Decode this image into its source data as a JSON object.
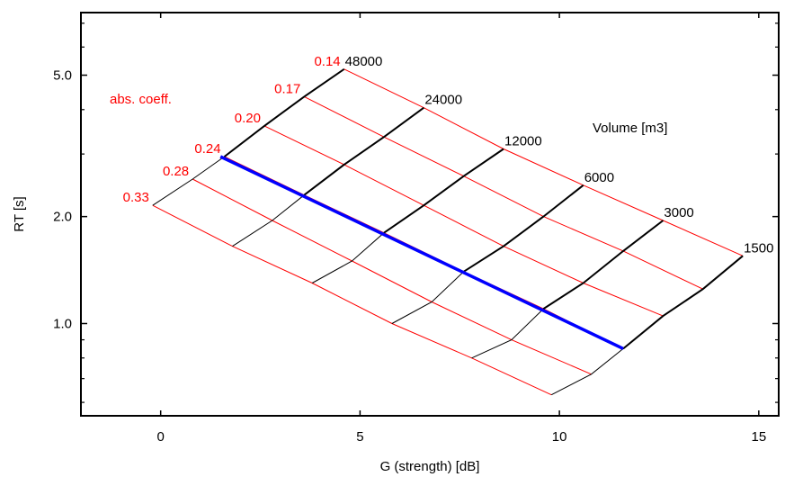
{
  "chart_data": {
    "type": "line",
    "title": "",
    "xlabel": "G (strength) [dB]",
    "ylabel": "RT [s]",
    "xlim": [
      -2,
      15.5
    ],
    "ylim": [
      0.55,
      7.5
    ],
    "y_scale": "log",
    "grid": false,
    "x_ticks": [
      0,
      5,
      10,
      15
    ],
    "x_tick_labels": [
      "0",
      "5",
      "10",
      "15"
    ],
    "y_ticks": [
      1.0,
      2.0,
      5.0
    ],
    "y_tick_labels": [
      "1.0",
      "2.0",
      "5.0"
    ],
    "abs_coeff_title": "abs. coeff.",
    "volume_title": "Volume [m3]",
    "colors": {
      "abs_coeff": "#ff0000",
      "volume": "#000000",
      "highlight": "#0000ff"
    },
    "volumes": [
      "48000",
      "24000",
      "12000",
      "6000",
      "3000",
      "1500"
    ],
    "abs_coeffs": [
      "0.14",
      "0.17",
      "0.20",
      "0.24",
      "0.28",
      "0.33"
    ],
    "grid_nodes": [
      [
        {
          "x": 4.6,
          "y": 5.2
        },
        {
          "x": 6.6,
          "y": 4.05
        },
        {
          "x": 8.6,
          "y": 3.1
        },
        {
          "x": 10.6,
          "y": 2.45
        },
        {
          "x": 12.6,
          "y": 1.95
        },
        {
          "x": 14.6,
          "y": 1.55
        }
      ],
      [
        {
          "x": 3.6,
          "y": 4.35
        },
        {
          "x": 5.6,
          "y": 3.35
        },
        {
          "x": 7.6,
          "y": 2.6
        },
        {
          "x": 9.6,
          "y": 2.0
        },
        {
          "x": 11.6,
          "y": 1.6
        },
        {
          "x": 13.6,
          "y": 1.25
        }
      ],
      [
        {
          "x": 2.6,
          "y": 3.6
        },
        {
          "x": 4.6,
          "y": 2.8
        },
        {
          "x": 6.6,
          "y": 2.15
        },
        {
          "x": 8.6,
          "y": 1.65
        },
        {
          "x": 10.6,
          "y": 1.3
        },
        {
          "x": 12.6,
          "y": 1.05
        }
      ],
      [
        {
          "x": 1.6,
          "y": 2.95
        },
        {
          "x": 3.6,
          "y": 2.3
        },
        {
          "x": 5.6,
          "y": 1.8
        },
        {
          "x": 7.6,
          "y": 1.4
        },
        {
          "x": 9.6,
          "y": 1.1
        },
        {
          "x": 11.6,
          "y": 0.85
        }
      ],
      [
        {
          "x": 0.8,
          "y": 2.55
        },
        {
          "x": 2.8,
          "y": 1.95
        },
        {
          "x": 4.8,
          "y": 1.5
        },
        {
          "x": 6.8,
          "y": 1.15
        },
        {
          "x": 8.8,
          "y": 0.9
        },
        {
          "x": 10.8,
          "y": 0.72
        }
      ],
      [
        {
          "x": -0.2,
          "y": 2.15
        },
        {
          "x": 1.8,
          "y": 1.65
        },
        {
          "x": 3.8,
          "y": 1.3
        },
        {
          "x": 5.8,
          "y": 1.0
        },
        {
          "x": 7.8,
          "y": 0.8
        },
        {
          "x": 9.8,
          "y": 0.63
        }
      ]
    ],
    "highlight_line": [
      {
        "x": 1.5,
        "y": 2.95
      },
      {
        "x": 11.6,
        "y": 0.85
      }
    ]
  }
}
